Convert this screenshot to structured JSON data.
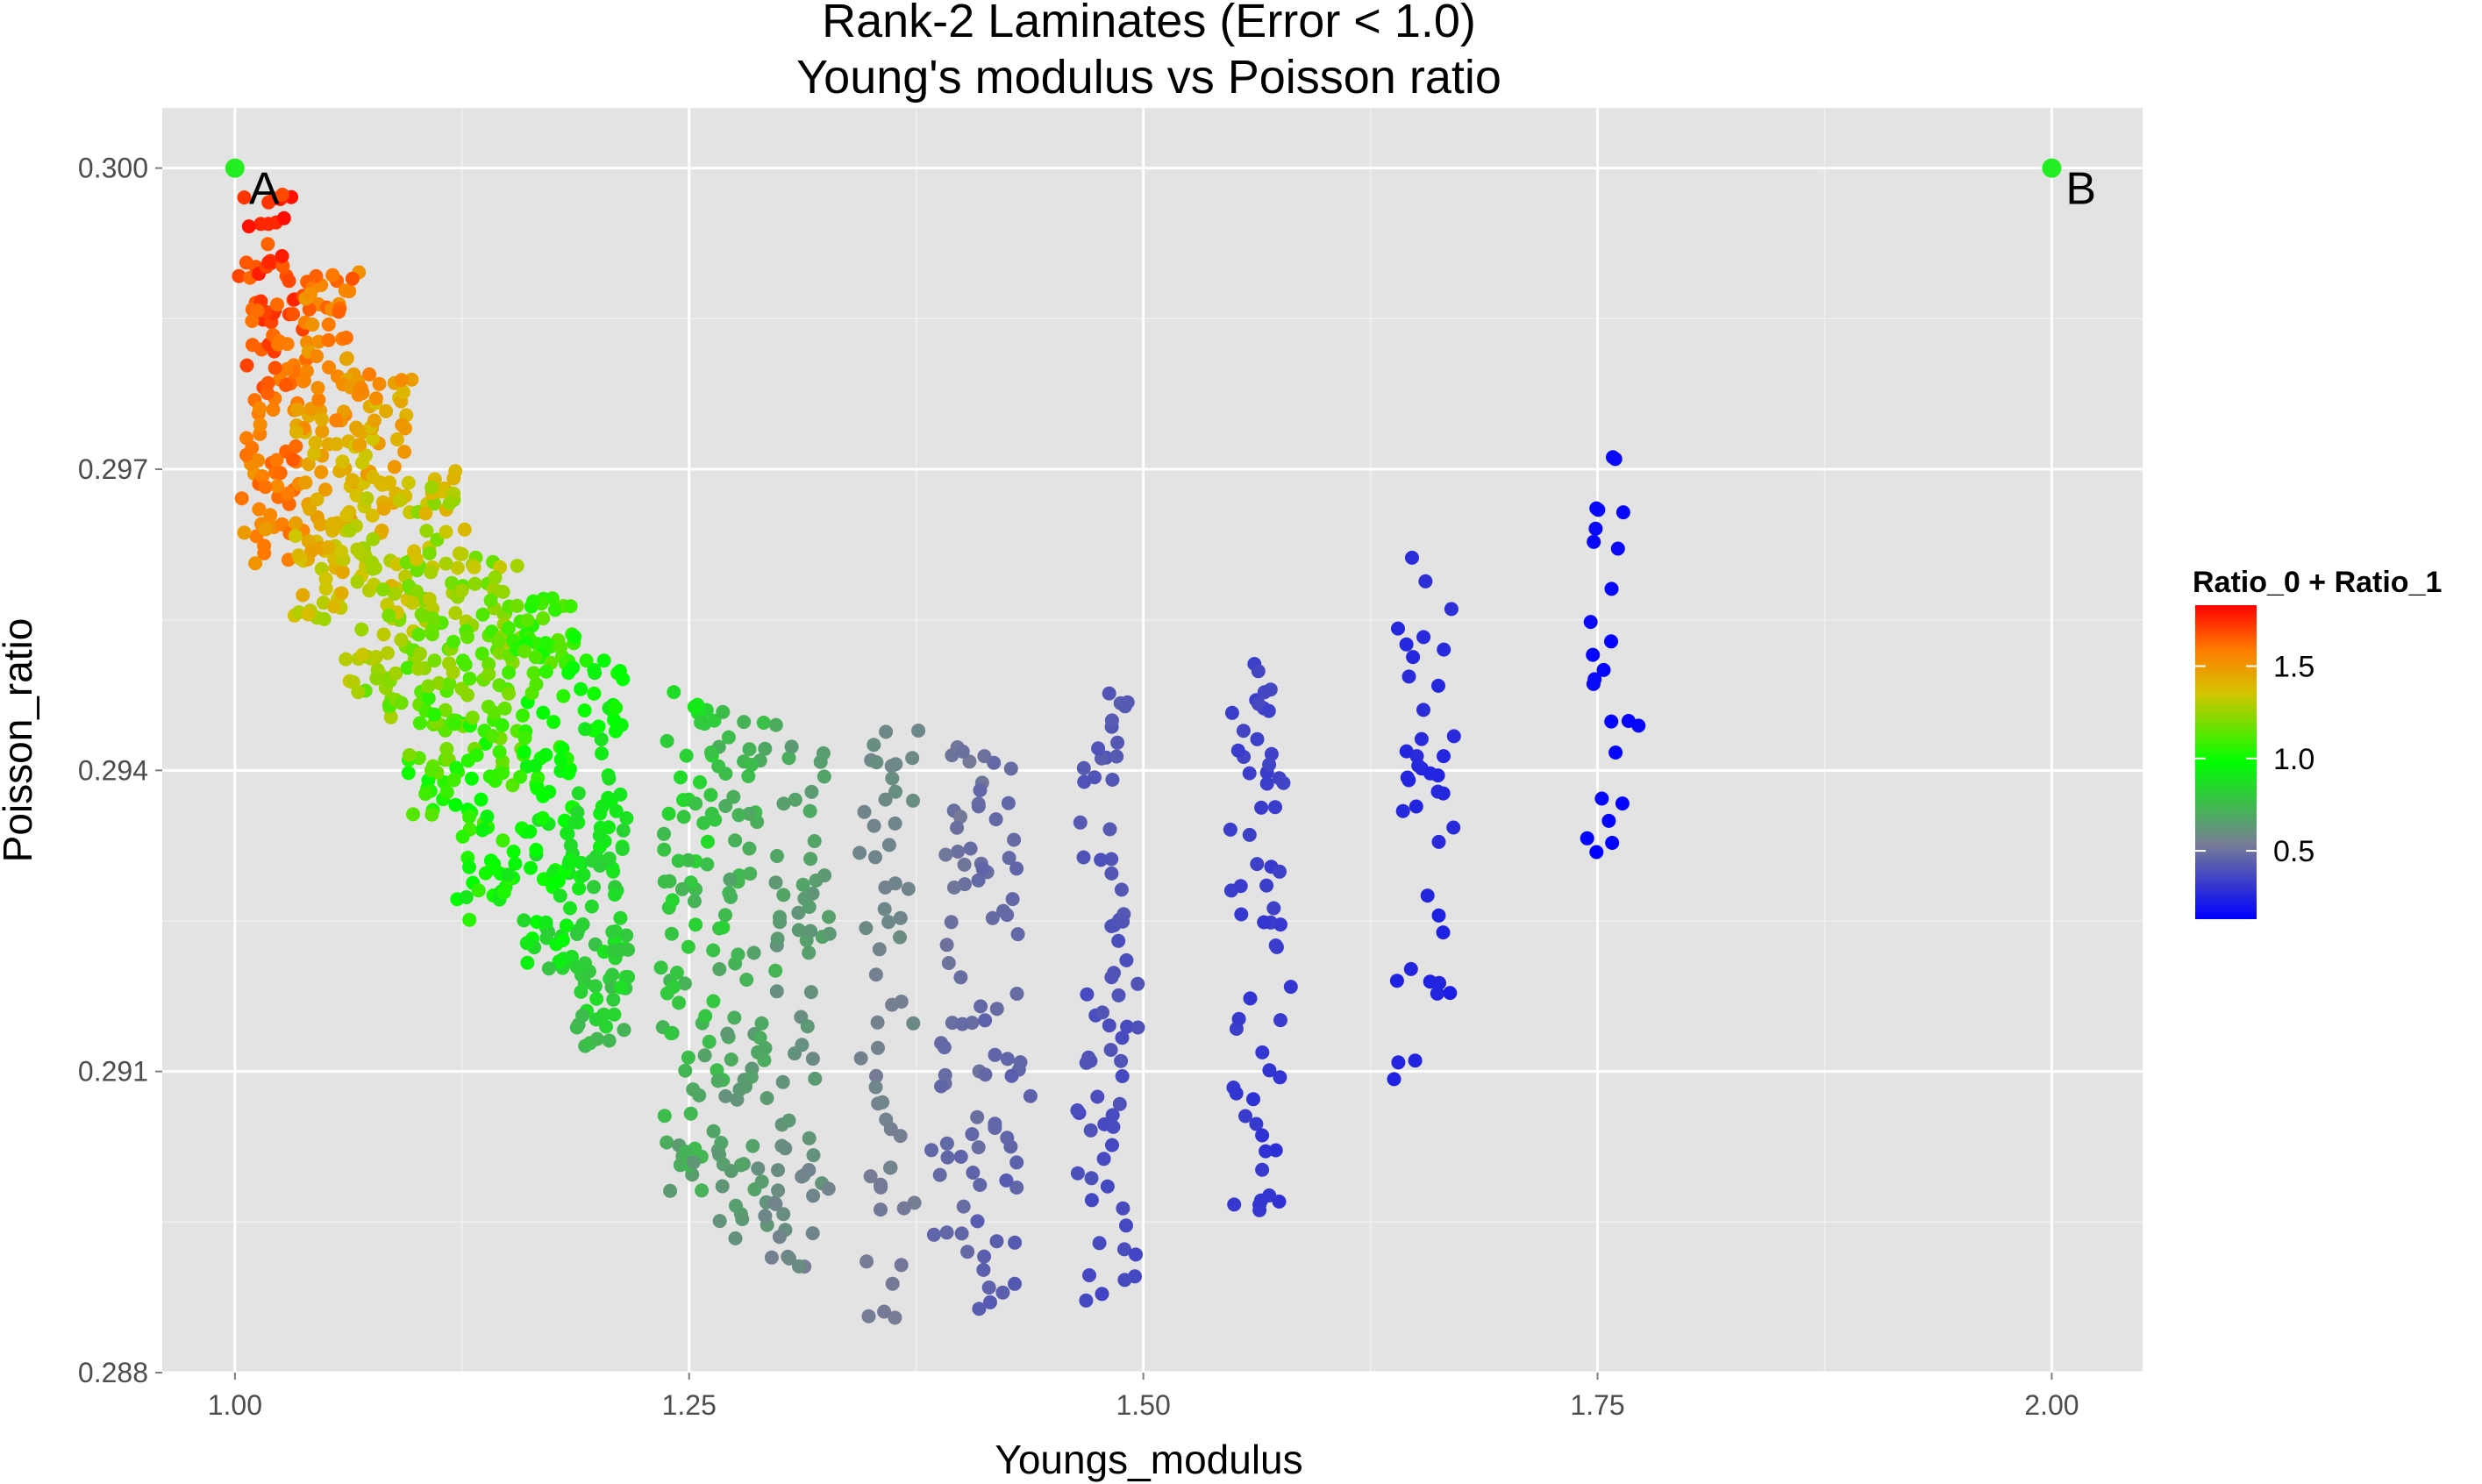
{
  "chart_data": {
    "type": "scatter",
    "title": "Rank-2 Laminates (Error < 1.0)",
    "subtitle": "Young's modulus vs Poisson ratio",
    "xlabel": "Youngs_modulus",
    "ylabel": "Poisson_ratio",
    "xlim": [
      0.96,
      2.05
    ],
    "ylim": [
      0.288,
      0.3006
    ],
    "x_ticks": [
      "1.00",
      "1.25",
      "1.50",
      "1.75",
      "2.00"
    ],
    "y_ticks": [
      "0.288",
      "0.291",
      "0.294",
      "0.297",
      "0.300"
    ],
    "grid": true,
    "legend": {
      "title": "Ratio_0 + Ratio_1",
      "placement": "right",
      "type": "colorbar",
      "range": [
        0.13,
        1.83
      ],
      "ticks": [
        "0.5",
        "1.0",
        "1.5"
      ],
      "colors": [
        "#0000ff",
        "#777d94",
        "#00ff00",
        "#ff0000"
      ]
    },
    "annotations": [
      {
        "label": "A",
        "x": 1.0,
        "y": 0.3,
        "color": "#22ee22"
      },
      {
        "label": "B",
        "x": 2.0,
        "y": 0.3,
        "color": "#22ee22"
      }
    ],
    "clusters": [
      {
        "x": 1.02,
        "y_range": [
          0.296,
          0.2998
        ],
        "n": 110,
        "ratio": [
          1.45,
          1.83
        ]
      },
      {
        "x": 1.05,
        "y_range": [
          0.2955,
          0.299
        ],
        "n": 120,
        "ratio": [
          1.25,
          1.7
        ]
      },
      {
        "x": 1.08,
        "y_range": [
          0.2945,
          0.298
        ],
        "n": 120,
        "ratio": [
          1.1,
          1.6
        ]
      },
      {
        "x": 1.11,
        "y_range": [
          0.2935,
          0.297
        ],
        "n": 120,
        "ratio": [
          0.95,
          1.45
        ]
      },
      {
        "x": 1.14,
        "y_range": [
          0.2925,
          0.2962
        ],
        "n": 110,
        "ratio": [
          0.85,
          1.35
        ]
      },
      {
        "x": 1.17,
        "y_range": [
          0.292,
          0.2958
        ],
        "n": 110,
        "ratio": [
          0.78,
          1.2
        ]
      },
      {
        "x": 1.2,
        "y_range": [
          0.2912,
          0.2952
        ],
        "n": 110,
        "ratio": [
          0.72,
          1.05
        ]
      },
      {
        "x": 1.25,
        "y_range": [
          0.2898,
          0.2948
        ],
        "n": 80,
        "ratio": [
          0.62,
          0.92
        ]
      },
      {
        "x": 1.28,
        "y_range": [
          0.2892,
          0.2946
        ],
        "n": 70,
        "ratio": [
          0.58,
          0.8
        ]
      },
      {
        "x": 1.31,
        "y_range": [
          0.289,
          0.2946
        ],
        "n": 70,
        "ratio": [
          0.55,
          0.72
        ]
      },
      {
        "x": 1.36,
        "y_range": [
          0.2885,
          0.2944
        ],
        "n": 55,
        "ratio": [
          0.52,
          0.62
        ]
      },
      {
        "x": 1.4,
        "y_range": [
          0.2892,
          0.2944
        ],
        "n": 45,
        "ratio": [
          0.45,
          0.55
        ]
      },
      {
        "x": 1.42,
        "y_range": [
          0.2885,
          0.2945
        ],
        "n": 45,
        "ratio": [
          0.42,
          0.52
        ]
      },
      {
        "x": 1.48,
        "y_range": [
          0.2886,
          0.2949
        ],
        "n": 70,
        "ratio": [
          0.35,
          0.45
        ]
      },
      {
        "x": 1.565,
        "y_range": [
          0.2895,
          0.2954
        ],
        "n": 60,
        "ratio": [
          0.28,
          0.38
        ]
      },
      {
        "x": 1.655,
        "y_range": [
          0.2909,
          0.2962
        ],
        "n": 40,
        "ratio": [
          0.22,
          0.3
        ]
      },
      {
        "x": 1.755,
        "y_range": [
          0.293,
          0.2972
        ],
        "n": 25,
        "ratio": [
          0.13,
          0.18
        ]
      }
    ]
  }
}
